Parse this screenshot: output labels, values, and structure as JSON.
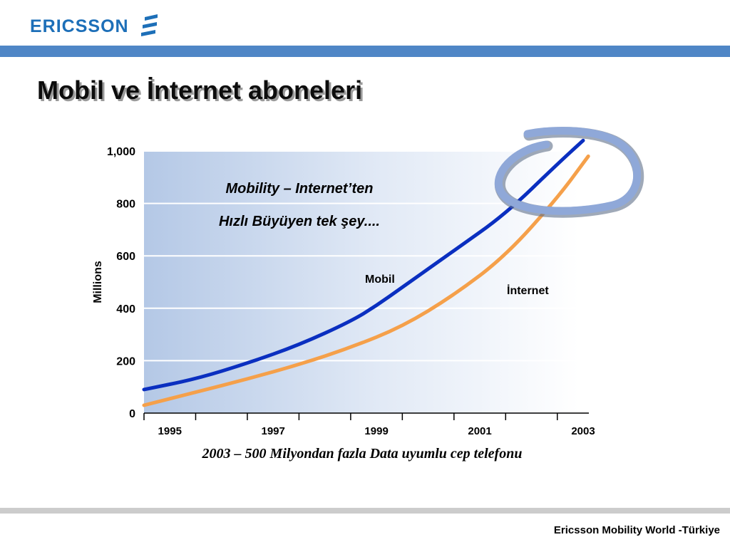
{
  "header": {
    "logo_text": "ERICSSON",
    "logo_icon": "ericsson-logo-mark-icon"
  },
  "slide": {
    "title": "Mobil ve İnternet aboneleri",
    "footer": "Ericsson Mobility World -Türkiye"
  },
  "colors": {
    "band": "#4f86c6",
    "mobil": "#0a2fc0",
    "internet": "#f5a04a",
    "circle": "#8fa8d8"
  },
  "chart_data": {
    "type": "line",
    "ylabel": "Millions",
    "xlabel": "",
    "ylim": [
      0,
      1000
    ],
    "xlim": [
      1995,
      2003.6
    ],
    "grid": true,
    "y_ticks": [
      "0",
      "200",
      "400",
      "600",
      "800",
      "1,000"
    ],
    "y_tick_values": [
      0,
      200,
      400,
      600,
      800,
      1000
    ],
    "x_ticks": [
      "1995",
      "1997",
      "1999",
      "2001",
      "2003"
    ],
    "x_tick_values": [
      1995,
      1997,
      1999,
      2001,
      2003
    ],
    "series": [
      {
        "name": "Mobil",
        "color": "#0a2fc0",
        "x": [
          1995,
          1996,
          1997,
          1998,
          1999,
          1999.5,
          2000,
          2001,
          2002,
          2003,
          2003.5
        ],
        "values": [
          90,
          130,
          190,
          260,
          350,
          410,
          480,
          620,
          760,
          950,
          1040
        ]
      },
      {
        "name": "İnternet",
        "color": "#f5a04a",
        "x": [
          1995,
          1996,
          1997,
          1998,
          1999,
          2000,
          2001,
          2002,
          2003,
          2003.6
        ],
        "values": [
          30,
          80,
          130,
          185,
          250,
          330,
          450,
          600,
          820,
          980
        ]
      }
    ],
    "annotations": {
      "line1": "Mobility – Internet’ten",
      "line2": "Hızlı Büyüyen tek şey....",
      "caption": "2003 – 500 Milyondan fazla Data uyumlu cep telefonu"
    }
  }
}
